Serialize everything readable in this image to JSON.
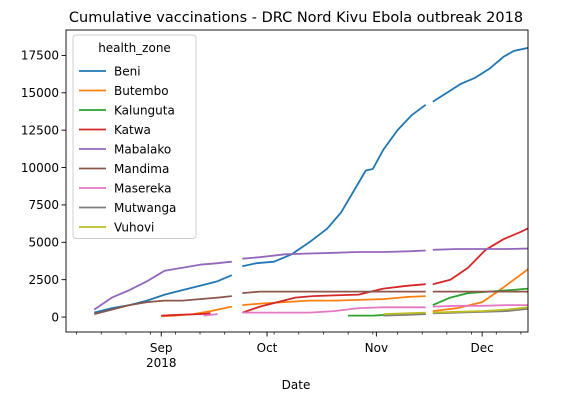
{
  "chart_data": {
    "type": "line",
    "title": "Cumulative vaccinations - DRC Nord Kivu Ebola outbreak 2018",
    "xlabel": "Date",
    "ylabel": "",
    "xlim": [
      "2018-08-05",
      "2018-12-14"
    ],
    "ylim": [
      -1000,
      19200
    ],
    "grid": false,
    "legend": {
      "title": "health_zone",
      "position": "top-left"
    },
    "x_ticks": [
      {
        "date": "2018-09-01",
        "label": "Sep",
        "sublabel": "2018"
      },
      {
        "date": "2018-10-01",
        "label": "Oct",
        "sublabel": ""
      },
      {
        "date": "2018-11-01",
        "label": "Nov",
        "sublabel": ""
      },
      {
        "date": "2018-12-01",
        "label": "Dec",
        "sublabel": ""
      }
    ],
    "x_minor_ticks": [
      "2018-08-08",
      "2018-08-15",
      "2018-08-22",
      "2018-08-29",
      "2018-09-05",
      "2018-09-12",
      "2018-09-19",
      "2018-09-26",
      "2018-10-03",
      "2018-10-10",
      "2018-10-17",
      "2018-10-24",
      "2018-10-31",
      "2018-11-07",
      "2018-11-14",
      "2018-11-21",
      "2018-11-28",
      "2018-12-05",
      "2018-12-12"
    ],
    "y_ticks": [
      0,
      2500,
      5000,
      7500,
      10000,
      12500,
      15000,
      17500
    ],
    "y_tick_labels": [
      "0",
      "2500",
      "5000",
      "7500",
      "10000",
      "12500",
      "15000",
      "17500"
    ],
    "series": [
      {
        "name": "Beni",
        "color": "#1f77b4",
        "segments": [
          [
            [
              "2018-08-13",
              300
            ],
            [
              "2018-08-18",
              600
            ],
            [
              "2018-08-23",
              800
            ],
            [
              "2018-08-28",
              1100
            ],
            [
              "2018-09-02",
              1500
            ],
            [
              "2018-09-07",
              1800
            ],
            [
              "2018-09-12",
              2100
            ],
            [
              "2018-09-17",
              2400
            ],
            [
              "2018-09-21",
              2800
            ]
          ],
          [
            [
              "2018-09-24",
              3400
            ],
            [
              "2018-09-28",
              3600
            ],
            [
              "2018-10-03",
              3700
            ],
            [
              "2018-10-08",
              4200
            ],
            [
              "2018-10-13",
              5000
            ],
            [
              "2018-10-18",
              5900
            ],
            [
              "2018-10-22",
              7000
            ],
            [
              "2018-10-26",
              8600
            ],
            [
              "2018-10-29",
              9800
            ],
            [
              "2018-10-31",
              9900
            ],
            [
              "2018-11-03",
              11200
            ],
            [
              "2018-11-07",
              12500
            ],
            [
              "2018-11-11",
              13500
            ],
            [
              "2018-11-15",
              14200
            ]
          ],
          [
            [
              "2018-11-17",
              14400
            ],
            [
              "2018-11-21",
              15000
            ],
            [
              "2018-11-25",
              15600
            ],
            [
              "2018-11-29",
              16000
            ],
            [
              "2018-12-03",
              16600
            ],
            [
              "2018-12-07",
              17400
            ],
            [
              "2018-12-10",
              17800
            ],
            [
              "2018-12-14",
              18000
            ],
            [
              "2018-12-18",
              18300
            ]
          ]
        ]
      },
      {
        "name": "Butembo",
        "color": "#ff7f0e",
        "segments": [
          [
            [
              "2018-09-01",
              50
            ],
            [
              "2018-09-05",
              100
            ],
            [
              "2018-09-10",
              200
            ],
            [
              "2018-09-15",
              400
            ],
            [
              "2018-09-21",
              700
            ]
          ],
          [
            [
              "2018-09-24",
              800
            ],
            [
              "2018-09-29",
              900
            ],
            [
              "2018-10-06",
              1000
            ],
            [
              "2018-10-13",
              1100
            ],
            [
              "2018-10-20",
              1100
            ],
            [
              "2018-10-27",
              1150
            ],
            [
              "2018-11-03",
              1200
            ],
            [
              "2018-11-10",
              1350
            ],
            [
              "2018-11-15",
              1400
            ]
          ],
          [
            [
              "2018-11-17",
              400
            ],
            [
              "2018-11-24",
              600
            ],
            [
              "2018-12-01",
              1000
            ],
            [
              "2018-12-06",
              1800
            ],
            [
              "2018-12-10",
              2500
            ],
            [
              "2018-12-14",
              3200
            ],
            [
              "2018-12-18",
              3600
            ]
          ]
        ]
      },
      {
        "name": "Kalunguta",
        "color": "#2ca02c",
        "segments": [
          [
            [
              "2018-10-24",
              100
            ],
            [
              "2018-10-31",
              100
            ],
            [
              "2018-11-07",
              200
            ],
            [
              "2018-11-15",
              200
            ]
          ],
          [
            [
              "2018-11-17",
              800
            ],
            [
              "2018-11-22",
              1300
            ],
            [
              "2018-11-27",
              1600
            ],
            [
              "2018-12-03",
              1700
            ],
            [
              "2018-12-09",
              1800
            ],
            [
              "2018-12-14",
              1900
            ],
            [
              "2018-12-18",
              2100
            ]
          ]
        ]
      },
      {
        "name": "Katwa",
        "color": "#d62728",
        "segments": [
          [
            [
              "2018-09-01",
              100
            ],
            [
              "2018-09-06",
              150
            ],
            [
              "2018-09-12",
              200
            ],
            [
              "2018-09-15",
              250
            ]
          ],
          [
            [
              "2018-09-24",
              300
            ],
            [
              "2018-09-29",
              700
            ],
            [
              "2018-10-04",
              1000
            ],
            [
              "2018-10-09",
              1300
            ],
            [
              "2018-10-14",
              1400
            ],
            [
              "2018-10-20",
              1450
            ],
            [
              "2018-10-27",
              1500
            ],
            [
              "2018-11-03",
              1900
            ],
            [
              "2018-11-10",
              2100
            ],
            [
              "2018-11-15",
              2200
            ]
          ],
          [
            [
              "2018-11-17",
              2200
            ],
            [
              "2018-11-22",
              2500
            ],
            [
              "2018-11-27",
              3300
            ],
            [
              "2018-12-02",
              4500
            ],
            [
              "2018-12-07",
              5200
            ],
            [
              "2018-12-12",
              5700
            ],
            [
              "2018-12-18",
              6400
            ]
          ]
        ]
      },
      {
        "name": "Mabalako",
        "color": "#9467bd",
        "segments": [
          [
            [
              "2018-08-13",
              500
            ],
            [
              "2018-08-18",
              1300
            ],
            [
              "2018-08-23",
              1800
            ],
            [
              "2018-08-28",
              2400
            ],
            [
              "2018-09-02",
              3100
            ],
            [
              "2018-09-07",
              3300
            ],
            [
              "2018-09-12",
              3500
            ],
            [
              "2018-09-17",
              3600
            ],
            [
              "2018-09-21",
              3700
            ]
          ],
          [
            [
              "2018-09-24",
              3900
            ],
            [
              "2018-09-29",
              4000
            ],
            [
              "2018-10-06",
              4200
            ],
            [
              "2018-10-13",
              4250
            ],
            [
              "2018-10-20",
              4300
            ],
            [
              "2018-10-27",
              4350
            ],
            [
              "2018-11-03",
              4350
            ],
            [
              "2018-11-10",
              4400
            ],
            [
              "2018-11-15",
              4450
            ]
          ],
          [
            [
              "2018-11-17",
              4500
            ],
            [
              "2018-11-24",
              4550
            ],
            [
              "2018-12-01",
              4550
            ],
            [
              "2018-12-08",
              4550
            ],
            [
              "2018-12-18",
              4600
            ]
          ]
        ]
      },
      {
        "name": "Mandima",
        "color": "#8c564b",
        "segments": [
          [
            [
              "2018-08-13",
              200
            ],
            [
              "2018-08-18",
              500
            ],
            [
              "2018-08-23",
              800
            ],
            [
              "2018-08-28",
              1000
            ],
            [
              "2018-09-02",
              1100
            ],
            [
              "2018-09-07",
              1100
            ],
            [
              "2018-09-12",
              1200
            ],
            [
              "2018-09-17",
              1300
            ],
            [
              "2018-09-21",
              1400
            ]
          ],
          [
            [
              "2018-09-24",
              1600
            ],
            [
              "2018-09-29",
              1700
            ],
            [
              "2018-10-06",
              1700
            ],
            [
              "2018-10-13",
              1700
            ],
            [
              "2018-10-20",
              1700
            ],
            [
              "2018-10-27",
              1700
            ],
            [
              "2018-11-03",
              1700
            ],
            [
              "2018-11-10",
              1700
            ],
            [
              "2018-11-15",
              1700
            ]
          ],
          [
            [
              "2018-11-17",
              1700
            ],
            [
              "2018-11-24",
              1700
            ],
            [
              "2018-12-01",
              1700
            ],
            [
              "2018-12-08",
              1700
            ],
            [
              "2018-12-18",
              1700
            ]
          ]
        ]
      },
      {
        "name": "Masereka",
        "color": "#e377c2",
        "segments": [
          [
            [
              "2018-09-13",
              100
            ],
            [
              "2018-09-17",
              200
            ]
          ],
          [
            [
              "2018-09-24",
              300
            ],
            [
              "2018-10-03",
              300
            ],
            [
              "2018-10-13",
              300
            ],
            [
              "2018-10-20",
              400
            ],
            [
              "2018-10-27",
              600
            ],
            [
              "2018-11-03",
              650
            ],
            [
              "2018-11-10",
              650
            ],
            [
              "2018-11-15",
              650
            ]
          ],
          [
            [
              "2018-11-17",
              700
            ],
            [
              "2018-11-24",
              750
            ],
            [
              "2018-12-01",
              750
            ],
            [
              "2018-12-08",
              800
            ],
            [
              "2018-12-18",
              800
            ]
          ]
        ]
      },
      {
        "name": "Mutwanga",
        "color": "#7f7f7f",
        "segments": [
          [
            [
              "2018-11-03",
              100
            ],
            [
              "2018-11-10",
              150
            ],
            [
              "2018-11-15",
              200
            ]
          ],
          [
            [
              "2018-11-17",
              250
            ],
            [
              "2018-11-24",
              300
            ],
            [
              "2018-12-01",
              350
            ],
            [
              "2018-12-08",
              400
            ],
            [
              "2018-12-14",
              550
            ],
            [
              "2018-12-18",
              650
            ]
          ]
        ]
      },
      {
        "name": "Vuhovi",
        "color": "#bcbd22",
        "segments": [
          [
            [
              "2018-11-03",
              200
            ],
            [
              "2018-11-10",
              250
            ],
            [
              "2018-11-15",
              300
            ]
          ],
          [
            [
              "2018-11-17",
              300
            ],
            [
              "2018-11-24",
              350
            ],
            [
              "2018-12-01",
              400
            ],
            [
              "2018-12-08",
              500
            ],
            [
              "2018-12-14",
              650
            ],
            [
              "2018-12-18",
              750
            ]
          ]
        ]
      }
    ]
  }
}
